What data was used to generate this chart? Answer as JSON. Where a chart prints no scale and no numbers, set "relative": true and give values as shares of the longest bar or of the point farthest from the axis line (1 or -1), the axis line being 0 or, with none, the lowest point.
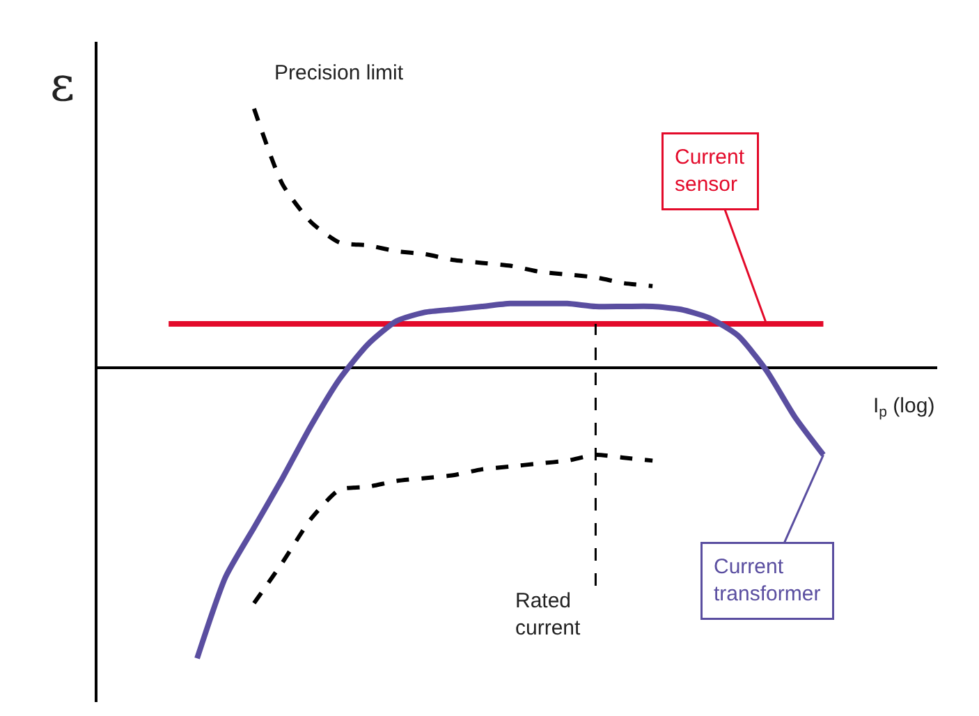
{
  "chart_data": {
    "type": "line",
    "relative": true,
    "ylabel": "ε",
    "xlabel": "I$_{p}$ (log)",
    "legend": false,
    "marker": "none",
    "categories": [
      null,
      null,
      null,
      null,
      null,
      null,
      null,
      null,
      null,
      null,
      null,
      null,
      null,
      null,
      null,
      null,
      null,
      null,
      null,
      null,
      null,
      null,
      null,
      null
    ],
    "series": [
      {
        "name": "Current sensor",
        "color": "#e30a2a",
        "line_style": "solid",
        "values": [
          0.15,
          0.15,
          0.15,
          0.15,
          0.15,
          0.15,
          0.15,
          0.15,
          0.15,
          0.15,
          0.15,
          0.15,
          0.15,
          0.15,
          0.15,
          0.15,
          0.15,
          0.15,
          0.15,
          0.15,
          0.15,
          0.15,
          0.15,
          0.15
        ]
      },
      {
        "name": "Current transformer",
        "color": "#5a4ea0",
        "line_style": "solid",
        "values": [
          null,
          -1,
          -0.72,
          -0.55,
          -0.38,
          -0.2,
          -0.04,
          0.08,
          0.16,
          0.19,
          0.2,
          0.21,
          0.22,
          0.22,
          0.22,
          0.21,
          0.21,
          0.21,
          0.2,
          0.17,
          0.11,
          -0.01,
          -0.17,
          -0.3
        ]
      },
      {
        "name": "Precision limit",
        "color": "#000000",
        "line_style": "dashed",
        "values": [
          null,
          null,
          null,
          0.89,
          0.63,
          0.5,
          0.43,
          0.42,
          0.4,
          0.39,
          0.37,
          0.36,
          0.35,
          0.33,
          0.32,
          0.31,
          0.29,
          0.28,
          null,
          null,
          null,
          null,
          null,
          null
        ]
      },
      {
        "color": "#000000",
        "line_style": "dashed",
        "values": [
          null,
          null,
          null,
          -0.81,
          -0.67,
          -0.52,
          -0.42,
          -0.41,
          -0.39,
          -0.38,
          -0.37,
          -0.35,
          -0.34,
          -0.33,
          -0.32,
          -0.3,
          -0.31,
          -0.32,
          null,
          null,
          null,
          null,
          null,
          null
        ]
      }
    ],
    "annotations": [
      "Rated current"
    ]
  }
}
